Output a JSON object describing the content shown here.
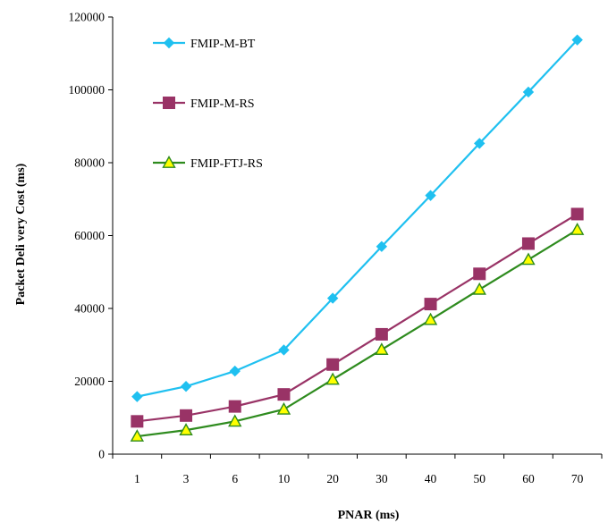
{
  "chart_data": {
    "type": "line",
    "xlabel": "PNAR (ms)",
    "ylabel": "Packet Deli very Cost (ms)",
    "categories": [
      "1",
      "3",
      "6",
      "10",
      "20",
      "30",
      "40",
      "50",
      "60",
      "70"
    ],
    "ylim": [
      0,
      120000
    ],
    "yticks": [
      "0",
      "20000",
      "40000",
      "60000",
      "80000",
      "100000",
      "120000"
    ],
    "grid": false,
    "legend_position": "top-left",
    "series": [
      {
        "name": "FMIP-M-BT",
        "marker": "diamond",
        "color": "#1FC0F0",
        "values": [
          15800,
          18600,
          22800,
          28600,
          42800,
          57000,
          71000,
          85300,
          99400,
          113700
        ]
      },
      {
        "name": "FMIP-M-RS",
        "marker": "square",
        "color": "#993366",
        "values": [
          9000,
          10600,
          13100,
          16400,
          24600,
          32900,
          41200,
          49500,
          57800,
          65900
        ]
      },
      {
        "name": "FMIP-FTJ-RS",
        "marker": "triangle",
        "color": "#2E8B1E",
        "marker_fill": "#FFFF00",
        "values": [
          4900,
          6600,
          9000,
          12300,
          20500,
          28700,
          36900,
          45200,
          53400,
          61600
        ]
      }
    ]
  }
}
